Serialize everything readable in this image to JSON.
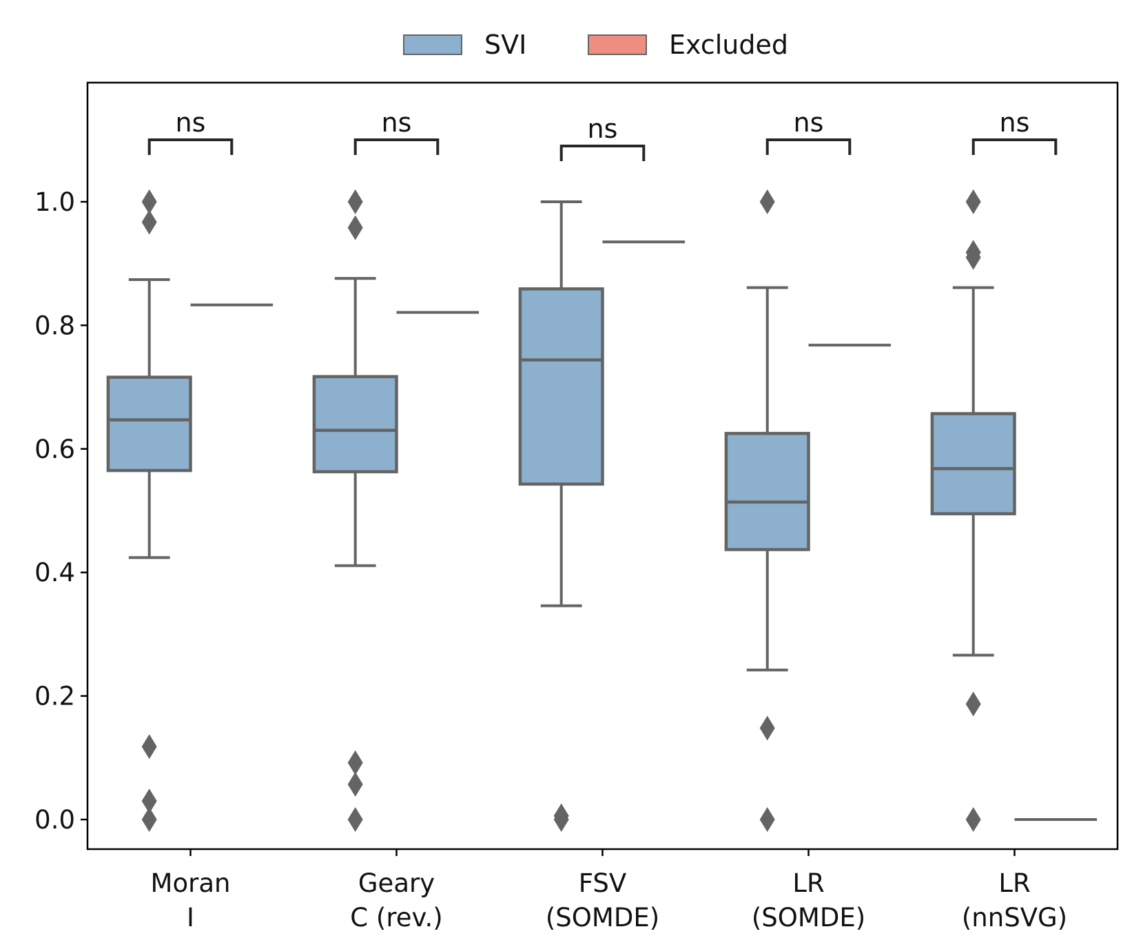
{
  "chart_data": {
    "type": "box",
    "legend": [
      {
        "label": "SVI",
        "color": "#8cb0cd"
      },
      {
        "label": "Excluded",
        "color": "#ee8e80"
      }
    ],
    "legend_position": "top-center",
    "ylim": [
      -0.05,
      1.19
    ],
    "yticks": [
      "0.0",
      "0.2",
      "0.4",
      "0.6",
      "0.8",
      "1.0"
    ],
    "ytick_values": [
      0.0,
      0.2,
      0.4,
      0.6,
      0.8,
      1.0
    ],
    "xlabel": "",
    "ylabel": "",
    "grid": false,
    "categories": [
      {
        "line1": "Moran",
        "line2": "I"
      },
      {
        "line1": "Geary",
        "line2": "C (rev.)"
      },
      {
        "line1": "FSV",
        "line2": "(SOMDE)"
      },
      {
        "line1": "LR",
        "line2": "(SOMDE)"
      },
      {
        "line1": "LR",
        "line2": "(nnSVG)"
      }
    ],
    "series": [
      {
        "name": "SVI",
        "boxes": [
          {
            "whisker_low": 0.424,
            "q1": 0.565,
            "median": 0.647,
            "q3": 0.716,
            "whisker_high": 0.874,
            "outliers": [
              1.0,
              0.967,
              0.118,
              0.03,
              0.0
            ]
          },
          {
            "whisker_low": 0.411,
            "q1": 0.563,
            "median": 0.63,
            "q3": 0.717,
            "whisker_high": 0.876,
            "outliers": [
              1.0,
              0.958,
              0.092,
              0.057,
              0.0
            ]
          },
          {
            "whisker_low": 0.346,
            "q1": 0.543,
            "median": 0.744,
            "q3": 0.859,
            "whisker_high": 1.0,
            "outliers": [
              0.006,
              0.0
            ]
          },
          {
            "whisker_low": 0.242,
            "q1": 0.437,
            "median": 0.514,
            "q3": 0.625,
            "whisker_high": 0.861,
            "outliers": [
              1.0,
              0.148,
              0.0
            ]
          },
          {
            "whisker_low": 0.266,
            "q1": 0.495,
            "median": 0.568,
            "q3": 0.657,
            "whisker_high": 0.861,
            "outliers": [
              1.0,
              0.918,
              0.91,
              0.187,
              0.0
            ]
          }
        ]
      },
      {
        "name": "Excluded",
        "values": [
          0.833,
          0.821,
          0.935,
          0.768,
          0.0
        ]
      }
    ],
    "significance": [
      {
        "label": "ns"
      },
      {
        "label": "ns"
      },
      {
        "label": "ns"
      },
      {
        "label": "ns"
      },
      {
        "label": "ns"
      }
    ],
    "colors": {
      "box_fill": "#8cb0cd",
      "box_edge": "#646464",
      "excluded": "#ee8e80",
      "axis": "#000000",
      "bracket": "#262626"
    }
  }
}
